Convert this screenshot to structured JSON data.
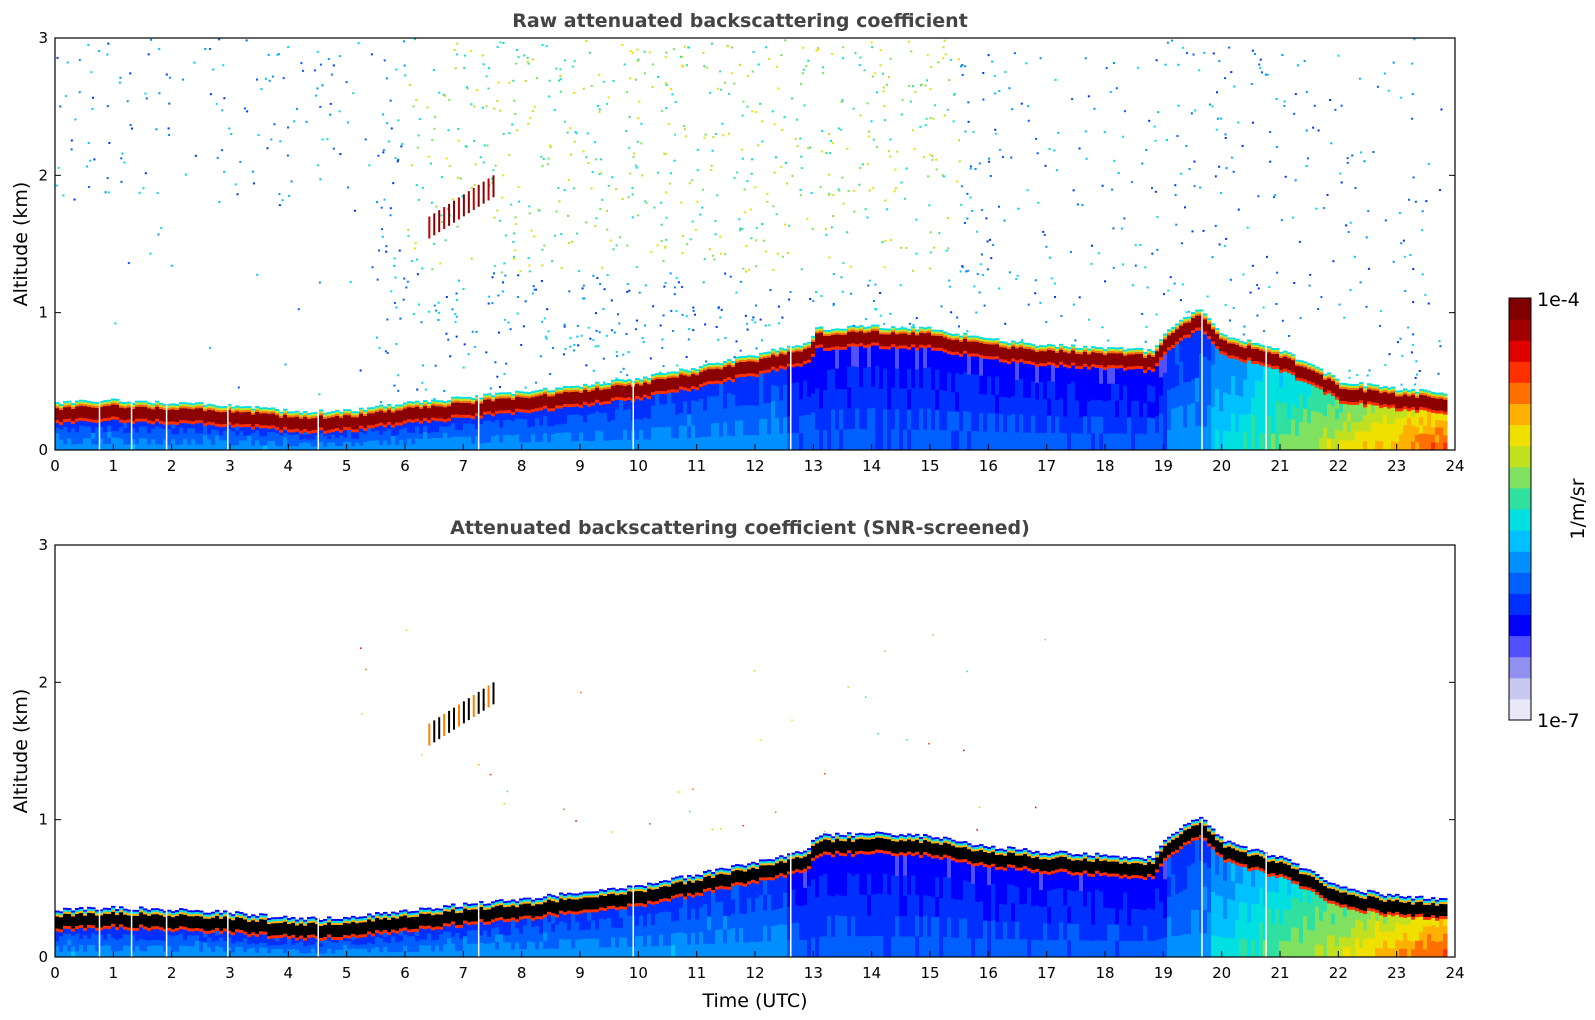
{
  "chart_data": [
    {
      "type": "heatmap",
      "title": "Raw attenuated backscattering coefficient",
      "xlabel": "",
      "ylabel": "Altitude (km)",
      "xlim": [
        0,
        24
      ],
      "ylim": [
        0,
        3
      ],
      "x_ticks": [
        "0",
        "1",
        "2",
        "3",
        "4",
        "5",
        "6",
        "7",
        "8",
        "9",
        "10",
        "11",
        "12",
        "13",
        "14",
        "15",
        "16",
        "17",
        "18",
        "19",
        "20",
        "21",
        "22",
        "23",
        "24"
      ],
      "y_ticks": [
        "0",
        "1",
        "2",
        "3"
      ],
      "variant": "raw",
      "layer_top_km": [
        [
          0,
          0.3
        ],
        [
          1,
          0.32
        ],
        [
          2,
          0.3
        ],
        [
          3,
          0.28
        ],
        [
          4,
          0.24
        ],
        [
          5,
          0.24
        ],
        [
          6,
          0.3
        ],
        [
          7,
          0.34
        ],
        [
          8,
          0.38
        ],
        [
          9,
          0.43
        ],
        [
          10,
          0.48
        ],
        [
          11,
          0.56
        ],
        [
          12.9,
          0.74
        ],
        [
          13,
          0.84
        ],
        [
          14,
          0.86
        ],
        [
          15,
          0.84
        ],
        [
          16,
          0.76
        ],
        [
          17,
          0.72
        ],
        [
          18,
          0.7
        ],
        [
          18.8,
          0.68
        ],
        [
          19,
          0.82
        ],
        [
          19.6,
          0.98
        ],
        [
          20,
          0.8
        ],
        [
          21,
          0.68
        ],
        [
          21.5,
          0.58
        ],
        [
          22,
          0.46
        ],
        [
          23,
          0.4
        ],
        [
          23.8,
          0.38
        ]
      ],
      "aloft_feature": {
        "x_range": [
          6.4,
          7.5
        ],
        "alt_km": [
          1.62,
          1.92
        ]
      }
    },
    {
      "type": "heatmap",
      "title": "Attenuated backscattering coefficient (SNR-screened)",
      "xlabel": "Time (UTC)",
      "ylabel": "Altitude (km)",
      "xlim": [
        0,
        24
      ],
      "ylim": [
        0,
        3
      ],
      "x_ticks": [
        "0",
        "1",
        "2",
        "3",
        "4",
        "5",
        "6",
        "7",
        "8",
        "9",
        "10",
        "11",
        "12",
        "13",
        "14",
        "15",
        "16",
        "17",
        "18",
        "19",
        "20",
        "21",
        "22",
        "23",
        "24"
      ],
      "y_ticks": [
        "0",
        "1",
        "2",
        "3"
      ],
      "variant": "screened",
      "layer_top_km": [
        [
          0,
          0.3
        ],
        [
          1,
          0.32
        ],
        [
          2,
          0.3
        ],
        [
          3,
          0.28
        ],
        [
          4,
          0.24
        ],
        [
          5,
          0.24
        ],
        [
          6,
          0.3
        ],
        [
          7,
          0.34
        ],
        [
          8,
          0.38
        ],
        [
          9,
          0.43
        ],
        [
          10,
          0.48
        ],
        [
          11,
          0.56
        ],
        [
          12.9,
          0.74
        ],
        [
          13,
          0.84
        ],
        [
          14,
          0.86
        ],
        [
          15,
          0.84
        ],
        [
          16,
          0.76
        ],
        [
          17,
          0.72
        ],
        [
          18,
          0.7
        ],
        [
          18.8,
          0.68
        ],
        [
          19,
          0.82
        ],
        [
          19.6,
          0.98
        ],
        [
          20,
          0.8
        ],
        [
          21,
          0.68
        ],
        [
          21.5,
          0.58
        ],
        [
          22,
          0.46
        ],
        [
          23,
          0.4
        ],
        [
          23.8,
          0.38
        ]
      ],
      "aloft_feature": {
        "x_range": [
          6.4,
          7.5
        ],
        "alt_km": [
          1.62,
          1.92
        ]
      }
    }
  ],
  "colorbar": {
    "max_label": "1e-4",
    "min_label": "1e-7",
    "unit_label": "1/m/sr",
    "colors": [
      "#e8e8f8",
      "#c8c8f0",
      "#9090f0",
      "#5050ff",
      "#0000ff",
      "#0030ff",
      "#0060ff",
      "#0090ff",
      "#00c0ff",
      "#00e0e0",
      "#30e0a0",
      "#80e060",
      "#c0e020",
      "#f0e000",
      "#ffb000",
      "#ff7000",
      "#ff3000",
      "#e00000",
      "#a00000",
      "#800000"
    ]
  }
}
